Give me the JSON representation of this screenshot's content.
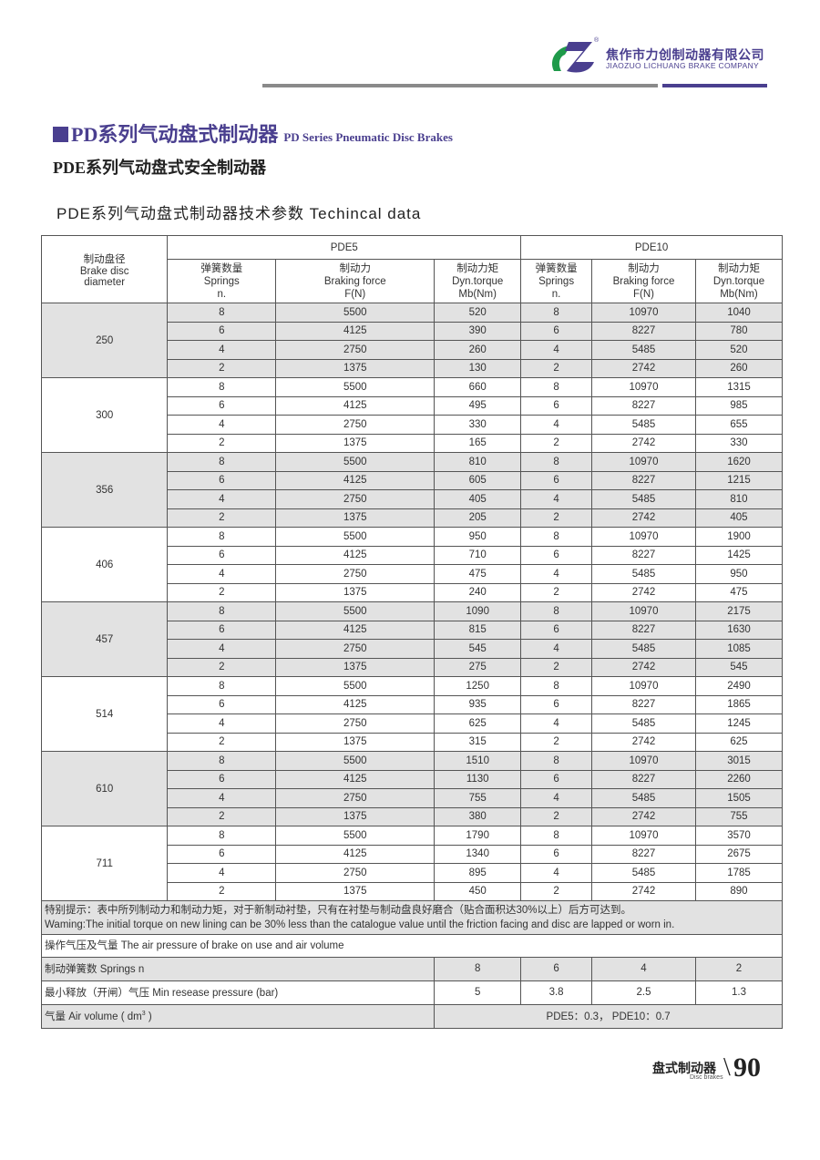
{
  "header": {
    "company_cn": "焦作市力创制动器有限公司",
    "company_en": "JIAOZUO LICHUANG BRAKE COMPANY",
    "logo": "registered-mark",
    "colors": {
      "brand": "#4a3f8f",
      "logo_green": "#1f9a4a"
    }
  },
  "title": {
    "cn": "PD系列气动盘式制动器",
    "en": "PD Series Pneumatic Disc Brakes"
  },
  "subtitle": "PDE系列气动盘式安全制动器",
  "section": "PDE系列气动盘式制动器技术参数 Techincal data",
  "table": {
    "diameter_header": [
      "制动盘径",
      "Brake disc",
      "diameter"
    ],
    "models": [
      "PDE5",
      "PDE10"
    ],
    "sub_headers": [
      [
        "弹簧数量",
        "Springs",
        "n."
      ],
      [
        "制动力",
        "Braking force",
        "F(N)"
      ],
      [
        "制动力矩",
        "Dyn.torque",
        "Mb(Nm)"
      ],
      [
        "弹簧数量",
        "Springs",
        "n."
      ],
      [
        "制动力",
        "Braking force",
        "F(N)"
      ],
      [
        "制动力矩",
        "Dyn.torque",
        "Mb(Nm)"
      ]
    ],
    "groups": [
      {
        "diameter": "250",
        "rows": [
          [
            "8",
            "5500",
            "520",
            "8",
            "10970",
            "1040"
          ],
          [
            "6",
            "4125",
            "390",
            "6",
            "8227",
            "780"
          ],
          [
            "4",
            "2750",
            "260",
            "4",
            "5485",
            "520"
          ],
          [
            "2",
            "1375",
            "130",
            "2",
            "2742",
            "260"
          ]
        ]
      },
      {
        "diameter": "300",
        "rows": [
          [
            "8",
            "5500",
            "660",
            "8",
            "10970",
            "1315"
          ],
          [
            "6",
            "4125",
            "495",
            "6",
            "8227",
            "985"
          ],
          [
            "4",
            "2750",
            "330",
            "4",
            "5485",
            "655"
          ],
          [
            "2",
            "1375",
            "165",
            "2",
            "2742",
            "330"
          ]
        ]
      },
      {
        "diameter": "356",
        "rows": [
          [
            "8",
            "5500",
            "810",
            "8",
            "10970",
            "1620"
          ],
          [
            "6",
            "4125",
            "605",
            "6",
            "8227",
            "1215"
          ],
          [
            "4",
            "2750",
            "405",
            "4",
            "5485",
            "810"
          ],
          [
            "2",
            "1375",
            "205",
            "2",
            "2742",
            "405"
          ]
        ]
      },
      {
        "diameter": "406",
        "rows": [
          [
            "8",
            "5500",
            "950",
            "8",
            "10970",
            "1900"
          ],
          [
            "6",
            "4125",
            "710",
            "6",
            "8227",
            "1425"
          ],
          [
            "4",
            "2750",
            "475",
            "4",
            "5485",
            "950"
          ],
          [
            "2",
            "1375",
            "240",
            "2",
            "2742",
            "475"
          ]
        ]
      },
      {
        "diameter": "457",
        "rows": [
          [
            "8",
            "5500",
            "1090",
            "8",
            "10970",
            "2175"
          ],
          [
            "6",
            "4125",
            "815",
            "6",
            "8227",
            "1630"
          ],
          [
            "4",
            "2750",
            "545",
            "4",
            "5485",
            "1085"
          ],
          [
            "2",
            "1375",
            "275",
            "2",
            "2742",
            "545"
          ]
        ]
      },
      {
        "diameter": "514",
        "rows": [
          [
            "8",
            "5500",
            "1250",
            "8",
            "10970",
            "2490"
          ],
          [
            "6",
            "4125",
            "935",
            "6",
            "8227",
            "1865"
          ],
          [
            "4",
            "2750",
            "625",
            "4",
            "5485",
            "1245"
          ],
          [
            "2",
            "1375",
            "315",
            "2",
            "2742",
            "625"
          ]
        ]
      },
      {
        "diameter": "610",
        "rows": [
          [
            "8",
            "5500",
            "1510",
            "8",
            "10970",
            "3015"
          ],
          [
            "6",
            "4125",
            "1130",
            "6",
            "8227",
            "2260"
          ],
          [
            "4",
            "2750",
            "755",
            "4",
            "5485",
            "1505"
          ],
          [
            "2",
            "1375",
            "380",
            "2",
            "2742",
            "755"
          ]
        ]
      },
      {
        "diameter": "711",
        "rows": [
          [
            "8",
            "5500",
            "1790",
            "8",
            "10970",
            "3570"
          ],
          [
            "6",
            "4125",
            "1340",
            "6",
            "8227",
            "2675"
          ],
          [
            "4",
            "2750",
            "895",
            "4",
            "5485",
            "1785"
          ],
          [
            "2",
            "1375",
            "450",
            "2",
            "2742",
            "890"
          ]
        ]
      }
    ],
    "note_cn": "特别提示：表中所列制动力和制动力矩，对于新制动衬垫，只有在衬垫与制动盘良好磨合（贴合面积达30%以上）后方可达到。",
    "note_en": "Waming:The initial torque on new lining can be 30% less than the catalogue value until the friction facing and disc are lapped or worn in.",
    "air_title": "操作气压及气量 The air pressure of brake on use and air volume",
    "springs_label": "制动弹簧数   Springs n",
    "springs": [
      "8",
      "6",
      "4",
      "2"
    ],
    "pressure_label": "最小释放（开闸）气压  Min resease pressure (bar)",
    "pressures": [
      "5",
      "3.8",
      "2.5",
      "1.3"
    ],
    "volume_label": "气量  Air volume ( dm",
    "volume_sup": "3",
    "volume_label_end": " )",
    "volume_value": "PDE5：0.3，  PDE10：0.7"
  },
  "footer": {
    "cn": "盘式制动器",
    "en": "Disc brakes",
    "page": "90"
  }
}
